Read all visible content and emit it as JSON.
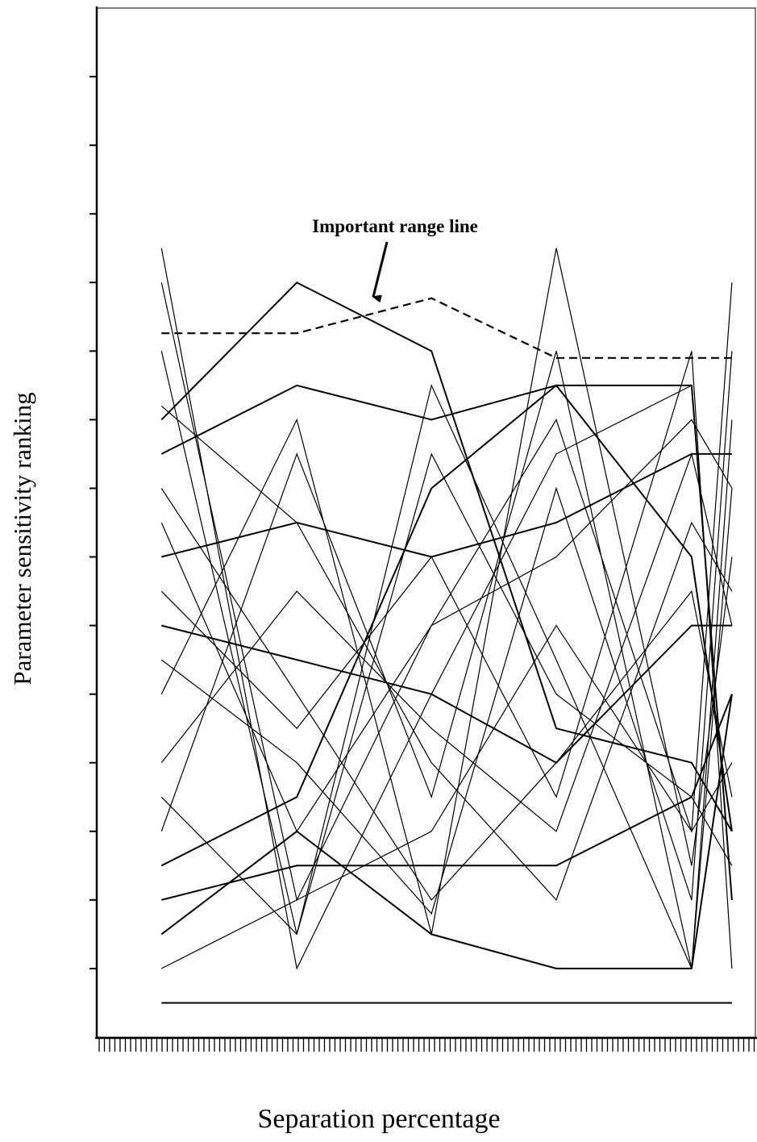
{
  "chart_data": {
    "type": "line",
    "y_label": "Parameter sensitivity ranking",
    "x_label": "Separation percentage",
    "annotation": "Important range line",
    "xlim": [
      0,
      100
    ],
    "ylim": [
      0,
      15
    ],
    "yticks": [
      1,
      2,
      3,
      4,
      5,
      6,
      7,
      8,
      9,
      10,
      11,
      12,
      13,
      14
    ],
    "x": [
      9.8,
      30.3,
      50.7,
      69.6,
      90.1,
      96.2
    ],
    "series": [
      {
        "color": "#000000",
        "dashed": true,
        "width": 2.2,
        "values": [
          10.26,
          10.26,
          10.77,
          9.9,
          9.9,
          9.9
        ]
      },
      {
        "color": "#000000",
        "width": 2,
        "values": [
          0.5,
          0.5,
          0.5,
          0.5,
          0.5,
          0.5
        ]
      },
      {
        "color": "#000000",
        "width": 2,
        "values": [
          8.5,
          9.5,
          9,
          9.5,
          9.5,
          2
        ]
      },
      {
        "color": "#000000",
        "width": 2,
        "values": [
          6,
          5.5,
          5,
          4,
          6,
          6
        ]
      },
      {
        "color": "#000000",
        "width": 2,
        "values": [
          7,
          7.5,
          7,
          7.5,
          8.5,
          8.5
        ]
      },
      {
        "color": "#000000",
        "width": 2,
        "values": [
          2.5,
          3.5,
          8,
          9.5,
          7,
          3
        ]
      },
      {
        "color": "#000000",
        "width": 2,
        "values": [
          2,
          2.5,
          2.5,
          2.5,
          3.5,
          5
        ]
      },
      {
        "color": "#000000",
        "width": 2,
        "values": [
          1.5,
          3,
          1.5,
          1,
          1,
          5
        ]
      },
      {
        "color": "#000000",
        "width": 1.2,
        "values": [
          1,
          2,
          6,
          7,
          9,
          8
        ]
      },
      {
        "color": "#000000",
        "width": 1.2,
        "values": [
          11.5,
          1,
          5,
          8.5,
          9.5,
          2
        ]
      },
      {
        "color": "#000000",
        "width": 1.2,
        "values": [
          10,
          1.5,
          9.5,
          5.5,
          1,
          9
        ]
      },
      {
        "color": "#000000",
        "width": 2,
        "values": [
          9,
          11,
          10,
          4.5,
          4,
          3
        ]
      },
      {
        "color": "#000000",
        "width": 1.2,
        "values": [
          5,
          9,
          1.5,
          11.5,
          2.5,
          7
        ]
      },
      {
        "color": "#000000",
        "width": 1.2,
        "values": [
          4,
          6.5,
          4.5,
          3,
          8.5,
          6
        ]
      },
      {
        "color": "#000000",
        "width": 1.2,
        "values": [
          3,
          8.5,
          3.5,
          10,
          1,
          8
        ]
      },
      {
        "color": "#000000",
        "width": 1.2,
        "values": [
          6.5,
          4.5,
          7,
          3.5,
          10,
          1
        ]
      },
      {
        "color": "#000000",
        "width": 1.2,
        "values": [
          5.5,
          4,
          1.8,
          8,
          2,
          10
        ]
      },
      {
        "color": "#000000",
        "width": 1.2,
        "values": [
          7.5,
          3,
          6,
          9,
          3,
          4
        ]
      },
      {
        "color": "#000000",
        "width": 1.2,
        "values": [
          8,
          5,
          2,
          4,
          6.5,
          3.5
        ]
      },
      {
        "color": "#000000",
        "width": 1.2,
        "values": [
          3.5,
          1.5,
          8.5,
          5,
          3.5,
          2.5
        ]
      },
      {
        "color": "#000000",
        "width": 1.2,
        "values": [
          9.2,
          7.5,
          4,
          2,
          7.5,
          6.5
        ]
      },
      {
        "color": "#000000",
        "width": 1.2,
        "values": [
          11,
          2,
          3,
          6,
          3,
          11
        ]
      }
    ]
  }
}
